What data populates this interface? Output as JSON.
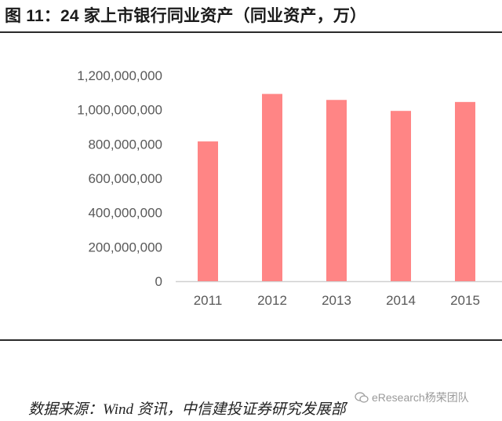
{
  "title": "图 11：24 家上市银行同业资产（同业资产，万）",
  "source": "数据来源：Wind 资讯，中信建投证券研究发展部",
  "watermark": "eResearch杨荣团队",
  "colors": {
    "bar": "#ff8585",
    "axis": "#d0d0d0",
    "rule": "#2a2a2a"
  },
  "chart_data": {
    "type": "bar",
    "title": "",
    "xlabel": "",
    "ylabel": "",
    "categories": [
      "2011",
      "2012",
      "2013",
      "2014",
      "2015"
    ],
    "values": [
      815000000,
      1092000000,
      1057000000,
      993000000,
      1045000000
    ],
    "ylim": [
      0,
      1200000000
    ],
    "yticks": [
      0,
      200000000,
      400000000,
      600000000,
      800000000,
      1000000000,
      1200000000
    ],
    "ytick_labels": [
      "0",
      "200,000,000",
      "400,000,000",
      "600,000,000",
      "800,000,000",
      "1,000,000,000",
      "1,200,000,000"
    ],
    "grid": false,
    "legend": "none"
  }
}
